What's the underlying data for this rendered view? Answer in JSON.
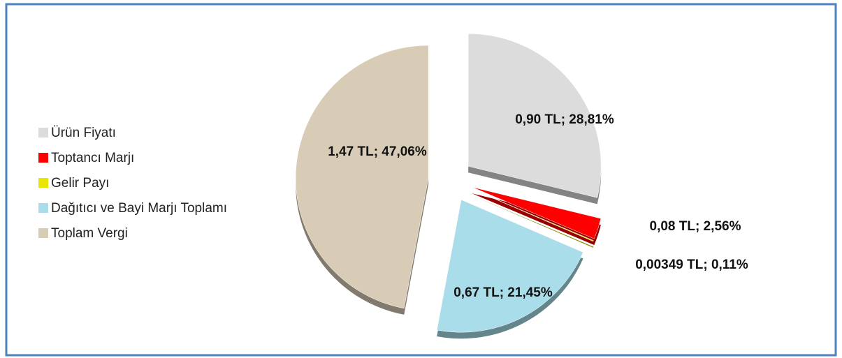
{
  "chart_data": {
    "type": "pie",
    "categories": [
      "Ürün Fiyatı",
      "Toptancı Marjı",
      "Gelir Payı",
      "Dağıtıcı ve Bayi Marjı Toplamı",
      "Toplam Vergi"
    ],
    "values": [
      28.81,
      2.56,
      0.11,
      21.45,
      47.06
    ],
    "value_labels": [
      "0,90 TL; 28,81%",
      "0,08 TL; 2,56%",
      "0,00349 TL; 0,11%",
      "0,67 TL; 21,45%",
      "1,47 TL; 47,06%"
    ],
    "colors": [
      "#dcdcdc",
      "#ff0000",
      "#e6e600",
      "#a9dde9",
      "#d9ccb6"
    ],
    "legend": "left"
  }
}
